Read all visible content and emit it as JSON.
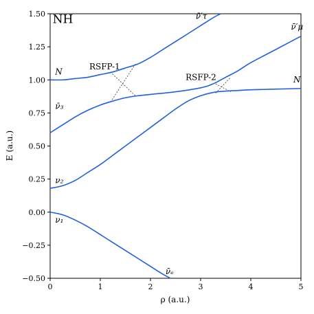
{
  "chart_data": {
    "type": "line",
    "title": "NH",
    "xlabel": "ρ (a.u.)",
    "ylabel": "E (a.u.)",
    "xlim": [
      0,
      5
    ],
    "ylim": [
      -0.5,
      1.5
    ],
    "xticks": [
      0,
      1,
      2,
      3,
      4,
      5
    ],
    "xtick_labels": [
      "0",
      "1",
      "2",
      "3",
      "4",
      "5"
    ],
    "yticks": [
      -0.5,
      -0.25,
      0.0,
      0.25,
      0.5,
      0.75,
      1.0,
      1.25,
      1.5
    ],
    "ytick_labels": [
      "−0.50",
      "−0.25",
      "0.00",
      "0.25",
      "0.50",
      "0.75",
      "1.00",
      "1.25",
      "1.50"
    ],
    "line_color": "#1f5fe0",
    "series": [
      {
        "x": [
          0,
          0.25,
          0.5,
          0.75,
          1.0,
          1.25,
          1.5,
          1.75,
          2.0,
          2.25,
          2.4
        ],
        "values": [
          0.0,
          -0.02,
          -0.06,
          -0.11,
          -0.17,
          -0.23,
          -0.29,
          -0.35,
          -0.41,
          -0.47,
          -0.5
        ]
      },
      {
        "x": [
          0,
          0.25,
          0.5,
          0.75,
          1.0,
          1.25,
          1.5,
          1.75,
          2.0,
          2.25,
          2.5,
          2.75,
          3.0,
          3.25,
          3.5,
          3.75,
          4.0,
          4.5,
          5.0
        ],
        "values": [
          0.18,
          0.2,
          0.24,
          0.3,
          0.36,
          0.43,
          0.5,
          0.57,
          0.64,
          0.71,
          0.78,
          0.84,
          0.88,
          0.905,
          0.915,
          0.92,
          0.925,
          0.93,
          0.935
        ]
      },
      {
        "x": [
          0,
          0.25,
          0.5,
          0.75,
          1.0,
          1.25,
          1.5,
          1.75,
          2.0,
          2.5,
          3.0,
          3.25,
          3.5,
          3.75,
          4.0,
          4.5,
          5.0
        ],
        "values": [
          0.6,
          0.66,
          0.72,
          0.77,
          0.81,
          0.84,
          0.865,
          0.88,
          0.89,
          0.91,
          0.94,
          0.97,
          1.02,
          1.07,
          1.13,
          1.23,
          1.33
        ]
      },
      {
        "x": [
          0,
          0.25,
          0.5,
          0.75,
          1.0,
          1.25,
          1.5,
          1.75,
          2.0,
          2.25,
          2.5,
          2.75,
          3.0,
          3.25,
          3.4
        ],
        "values": [
          1.0,
          1.0,
          1.01,
          1.02,
          1.04,
          1.06,
          1.09,
          1.12,
          1.17,
          1.23,
          1.29,
          1.35,
          1.41,
          1.47,
          1.5
        ]
      }
    ],
    "crossings": [
      {
        "x": [
          1.2,
          1.7
        ],
        "y": [
          1.06,
          0.88
        ]
      },
      {
        "x": [
          1.7,
          1.2
        ],
        "y": [
          1.12,
          0.83
        ]
      },
      {
        "x": [
          3.3,
          3.6
        ],
        "y": [
          0.97,
          0.91
        ]
      },
      {
        "x": [
          3.3,
          3.6
        ],
        "y": [
          0.9,
          1.02
        ]
      }
    ],
    "annotations": [
      {
        "text": "NH",
        "x": 0.05,
        "y": 1.43,
        "style": "title"
      },
      {
        "text": "N",
        "x": 0.1,
        "y": 1.04,
        "style": "italic"
      },
      {
        "text": "N",
        "x": 4.85,
        "y": 0.98,
        "style": "italic"
      },
      {
        "text": "ν̄₃",
        "x": 0.1,
        "y": 0.78,
        "style": "italic"
      },
      {
        "text": "ν₂",
        "x": 0.1,
        "y": 0.22,
        "style": "italic"
      },
      {
        "text": "ν₁",
        "x": 0.1,
        "y": -0.08,
        "style": "italic"
      },
      {
        "text": "ν̄ₑ",
        "x": 2.3,
        "y": -0.47,
        "style": "italic"
      },
      {
        "text": "ν̄′τ",
        "x": 2.9,
        "y": 1.46,
        "style": "italic"
      },
      {
        "text": "ν̄′μ",
        "x": 4.8,
        "y": 1.38,
        "style": "italic"
      },
      {
        "text": "RSFP-1",
        "x": 0.78,
        "y": 1.08,
        "style": "plain"
      },
      {
        "text": "RSFP-2",
        "x": 2.7,
        "y": 1.0,
        "style": "plain"
      }
    ]
  }
}
